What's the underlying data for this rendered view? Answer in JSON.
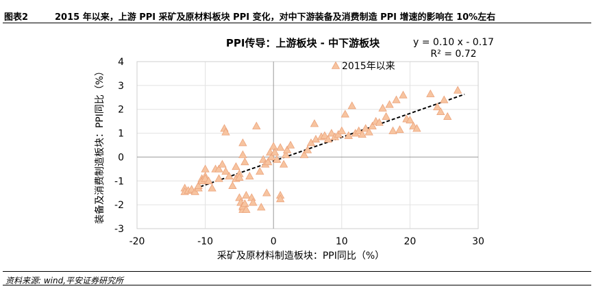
{
  "header": {
    "figure_label": "图表2",
    "caption": "2015 年以来，上游 PPI 采矿及原材料板块 PPI 变化，对中下游装备及消费制造 PPI 增速的影响在 10%左右"
  },
  "footer": {
    "source": "资料来源: wind,平安证券研究所"
  },
  "chart_data": {
    "type": "scatter",
    "title": "PPI传导：上游板块 - 中下游板块",
    "xlabel": "采矿及原材料制造板块：PPI同比（%）",
    "ylabel": "装备及消费制造板块：PPI同比（%）",
    "xlim": [
      -20,
      30
    ],
    "ylim": [
      -3,
      4
    ],
    "x_ticks": [
      -20,
      -10,
      0,
      10,
      20,
      30
    ],
    "y_ticks": [
      -3,
      -2,
      -1,
      0,
      1,
      2,
      3,
      4
    ],
    "x_tick_labels": [
      "-20",
      "-10",
      "0",
      "10",
      "20",
      "30"
    ],
    "y_tick_labels": [
      "-3",
      "-2",
      "-1",
      "0",
      "1",
      "2",
      "3",
      "4"
    ],
    "grid": "both",
    "legend_position": "top",
    "marker": "triangle",
    "marker_color": "#f7c4a0",
    "marker_edge_color": "#eba27a",
    "trendline": {
      "equation": "y = 0.10 x - 0.17",
      "r_squared": "R² = 0.72",
      "slope": 0.1,
      "intercept": -0.17,
      "x_range": [
        -13,
        28
      ],
      "style": "dashed",
      "color": "#000000"
    },
    "series": [
      {
        "name": "2015年以来",
        "points": [
          [
            -13,
            -1.3
          ],
          [
            -13,
            -1.45
          ],
          [
            -12.5,
            -1.4
          ],
          [
            -12,
            -1.35
          ],
          [
            -11.5,
            -1.45
          ],
          [
            -11,
            -1.3
          ],
          [
            -11,
            -1.2
          ],
          [
            -10.5,
            -0.9
          ],
          [
            -10.5,
            -1.0
          ],
          [
            -10,
            -0.8
          ],
          [
            -10,
            -0.9
          ],
          [
            -9.5,
            -1.0
          ],
          [
            -10,
            -0.5
          ],
          [
            -9,
            -1.3
          ],
          [
            -8.5,
            -0.5
          ],
          [
            -8,
            -0.9
          ],
          [
            -8,
            -0.5
          ],
          [
            -7.5,
            -0.3
          ],
          [
            -7.2,
            1.2
          ],
          [
            -7,
            1.05
          ],
          [
            -7,
            -0.6
          ],
          [
            -6.5,
            -0.8
          ],
          [
            -6,
            -1.2
          ],
          [
            -5.5,
            -0.9
          ],
          [
            -5.5,
            -0.4
          ],
          [
            -5,
            -0.7
          ],
          [
            -5,
            -0.85
          ],
          [
            -5,
            -1.7
          ],
          [
            -4.8,
            -1.9
          ],
          [
            -4.5,
            -2.1
          ],
          [
            -4.5,
            -2.2
          ],
          [
            -4.5,
            -2.05
          ],
          [
            -4.2,
            -1.95
          ],
          [
            -4,
            -2.2
          ],
          [
            -4,
            -1.6
          ],
          [
            -4.5,
            0.1
          ],
          [
            -4.2,
            -0.2
          ],
          [
            -4.5,
            0.6
          ],
          [
            -3.5,
            -0.8
          ],
          [
            -3.2,
            -1.7
          ],
          [
            -3,
            -1.9
          ],
          [
            -2.5,
            1.3
          ],
          [
            -2,
            -0.6
          ],
          [
            -1.8,
            -2.1
          ],
          [
            -1.5,
            -0.1
          ],
          [
            -1.2,
            -0.3
          ],
          [
            -1,
            -1.5
          ],
          [
            -0.8,
            -0.2
          ],
          [
            -0.5,
            0.2
          ],
          [
            -0.3,
            0.0
          ],
          [
            0,
            0.45
          ],
          [
            0.2,
            0.2
          ],
          [
            0.5,
            -0.1
          ],
          [
            1,
            0.4
          ],
          [
            1,
            -1.6
          ],
          [
            1,
            -1.75
          ],
          [
            1.5,
            -0.3
          ],
          [
            1.8,
            0.1
          ],
          [
            2,
            0.3
          ],
          [
            2.5,
            0.5
          ],
          [
            4.5,
            0.1
          ],
          [
            5,
            0.3
          ],
          [
            5.5,
            0.6
          ],
          [
            6,
            1.4
          ],
          [
            6.2,
            0.75
          ],
          [
            7,
            0.85
          ],
          [
            7.5,
            0.9
          ],
          [
            8,
            0.75
          ],
          [
            8.5,
            1.0
          ],
          [
            9,
            0.85
          ],
          [
            9.5,
            0.95
          ],
          [
            10,
            1.1
          ],
          [
            10.5,
            1.8
          ],
          [
            11,
            0.9
          ],
          [
            11.5,
            2.15
          ],
          [
            12,
            1.0
          ],
          [
            12.5,
            1.1
          ],
          [
            13,
            0.95
          ],
          [
            13.5,
            1.2
          ],
          [
            14,
            1.05
          ],
          [
            14.5,
            1.3
          ],
          [
            15,
            1.5
          ],
          [
            15.5,
            1.45
          ],
          [
            16,
            2.05
          ],
          [
            16.5,
            1.7
          ],
          [
            17,
            2.2
          ],
          [
            17.5,
            1.1
          ],
          [
            18,
            2.4
          ],
          [
            18.5,
            1.15
          ],
          [
            19,
            2.6
          ],
          [
            19.5,
            1.6
          ],
          [
            20,
            1.55
          ],
          [
            20.5,
            1.3
          ],
          [
            21,
            1.2
          ],
          [
            23,
            2.65
          ],
          [
            24,
            2.1
          ],
          [
            24.5,
            1.9
          ],
          [
            25,
            2.4
          ],
          [
            25.5,
            1.7
          ],
          [
            27,
            2.8
          ]
        ]
      }
    ]
  }
}
